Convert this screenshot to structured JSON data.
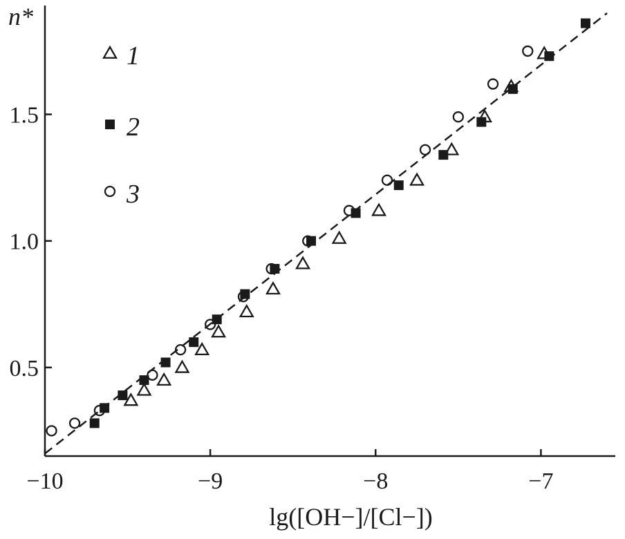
{
  "chart_data": {
    "type": "scatter",
    "title": "",
    "xlabel": "lg([OH−]/[Cl−])",
    "ylabel": "n*",
    "xlim": [
      -10.0,
      -6.55
    ],
    "ylim": [
      0.15,
      1.93
    ],
    "xticks": [
      -10,
      -9,
      -8,
      -7
    ],
    "xtick_labels": [
      "−10",
      "−9",
      "−8",
      "−7"
    ],
    "yticks": [
      0.5,
      1.0,
      1.5
    ],
    "ytick_labels": [
      "0.5",
      "1.0",
      "1.5"
    ],
    "grid": false,
    "legend_position": "top-left",
    "colors": {
      "ink": "#1a1a1a",
      "background": "#ffffff"
    },
    "series": [
      {
        "name": "1",
        "marker": "open-triangle",
        "x": [
          -9.48,
          -9.4,
          -9.28,
          -9.17,
          -9.05,
          -8.95,
          -8.78,
          -8.62,
          -8.44,
          -8.22,
          -7.98,
          -7.75,
          -7.54,
          -7.34,
          -7.18,
          -6.98
        ],
        "y": [
          0.37,
          0.41,
          0.45,
          0.5,
          0.57,
          0.64,
          0.72,
          0.81,
          0.91,
          1.01,
          1.12,
          1.24,
          1.36,
          1.49,
          1.61,
          1.74
        ]
      },
      {
        "name": "2",
        "marker": "filled-square",
        "x": [
          -9.7,
          -9.64,
          -9.53,
          -9.4,
          -9.27,
          -9.1,
          -8.96,
          -8.79,
          -8.61,
          -8.39,
          -8.12,
          -7.86,
          -7.59,
          -7.36,
          -7.17,
          -6.95,
          -6.73
        ],
        "y": [
          0.28,
          0.34,
          0.39,
          0.45,
          0.52,
          0.6,
          0.69,
          0.79,
          0.89,
          1.0,
          1.11,
          1.22,
          1.34,
          1.47,
          1.6,
          1.73,
          1.86
        ]
      },
      {
        "name": "3",
        "marker": "open-circle",
        "x": [
          -9.96,
          -9.82,
          -9.67,
          -9.35,
          -9.18,
          -9.0,
          -8.8,
          -8.63,
          -8.41,
          -8.16,
          -7.93,
          -7.7,
          -7.5,
          -7.29,
          -7.08
        ],
        "y": [
          0.25,
          0.28,
          0.33,
          0.47,
          0.57,
          0.67,
          0.78,
          0.89,
          1.0,
          1.12,
          1.24,
          1.36,
          1.49,
          1.62,
          1.75
        ]
      }
    ],
    "fit_line": {
      "style": "dashed",
      "x": [
        -10.0,
        -6.6
      ],
      "y": [
        0.16,
        1.9
      ]
    }
  }
}
